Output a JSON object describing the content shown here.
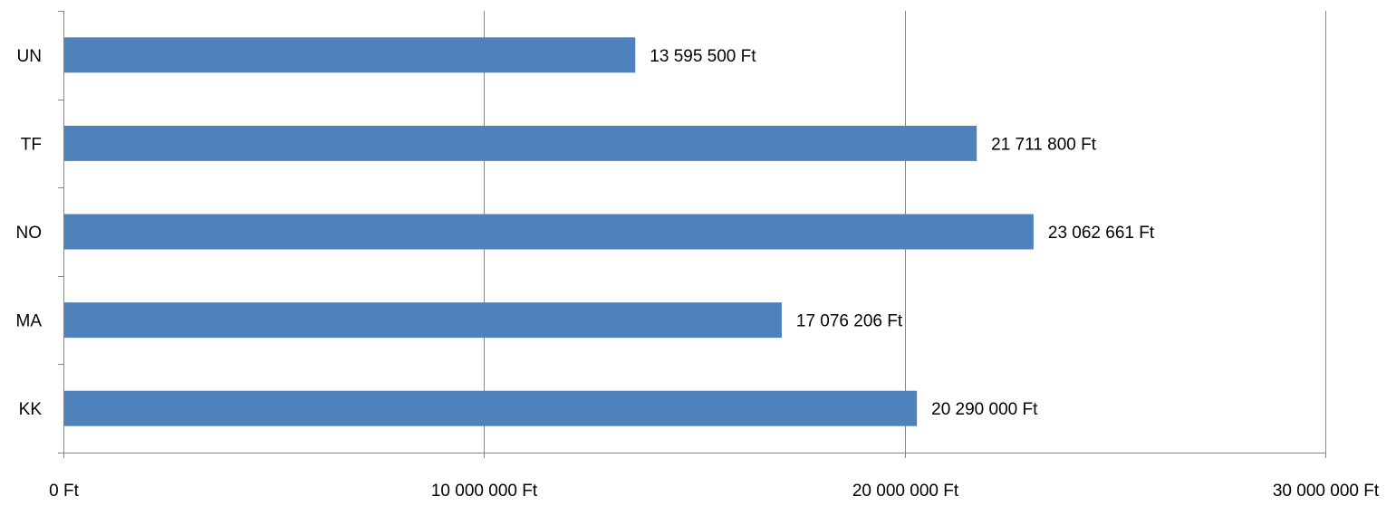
{
  "chart_data": {
    "type": "bar",
    "orientation": "horizontal",
    "categories": [
      "UN",
      "TF",
      "NO",
      "MA",
      "KK"
    ],
    "values": [
      13595500,
      21711800,
      23062661,
      17076206,
      20290000
    ],
    "data_labels": [
      "13 595 500 Ft",
      "21 711 800 Ft",
      "23 062 661 Ft",
      "17 076 206 Ft",
      "20 290 000 Ft"
    ],
    "x_ticks": [
      0,
      10000000,
      20000000,
      30000000
    ],
    "x_tick_labels": [
      "0 Ft",
      "10 000 000 Ft",
      "20 000 000 Ft",
      "30 000 000 Ft"
    ],
    "xlim": [
      0,
      30000000
    ],
    "grid": "vertical",
    "legend": "none",
    "bar_color": "#4F81BD",
    "grid_color": "#868686",
    "title": "",
    "xlabel": "",
    "ylabel": ""
  }
}
